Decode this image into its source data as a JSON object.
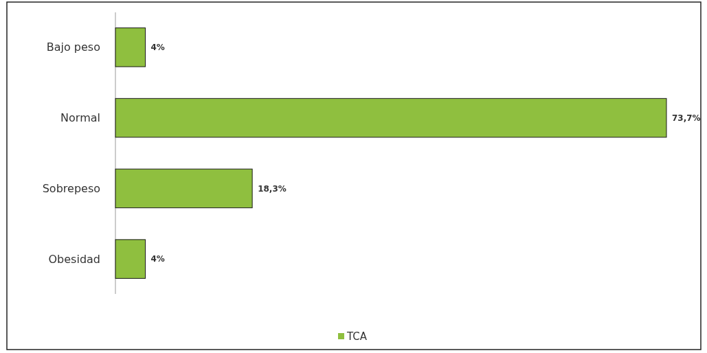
{
  "chart_data": {
    "type": "bar",
    "orientation": "horizontal",
    "categories": [
      "Bajo peso",
      "Normal",
      "Sobrepeso",
      "Obesidad"
    ],
    "series": [
      {
        "name": "TCA",
        "color": "#8fbf3f",
        "values": [
          4,
          73.7,
          18.3,
          4
        ],
        "value_labels": [
          "4%",
          "73,7%",
          "18,3%",
          "4%"
        ]
      }
    ],
    "legend": "bottom"
  }
}
